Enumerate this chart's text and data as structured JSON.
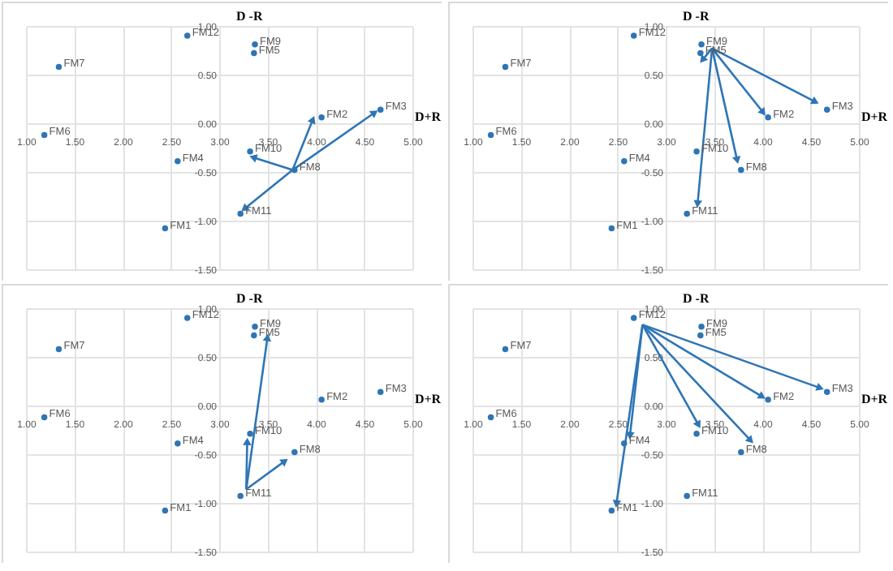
{
  "chart_data": [
    {
      "type": "scatter",
      "xlabel": "D+R",
      "ylabel": "D -R",
      "xlim": [
        1,
        5
      ],
      "ylim": [
        -1.5,
        1
      ],
      "grid": true,
      "xticks": [
        {
          "value": 1,
          "label": "1.00"
        },
        {
          "value": 1.5,
          "label": "1.50"
        },
        {
          "value": 2,
          "label": "2.00"
        },
        {
          "value": 2.5,
          "label": "2.50"
        },
        {
          "value": 3,
          "label": "3.00"
        },
        {
          "value": 3.5,
          "label": "3.50"
        },
        {
          "value": 4,
          "label": "4.00"
        },
        {
          "value": 4.5,
          "label": "4.50"
        },
        {
          "value": 5,
          "label": "5.00"
        }
      ],
      "yticks": [
        {
          "value": -1.5,
          "label": "-1.50"
        },
        {
          "value": -1,
          "label": "-1.00"
        },
        {
          "value": -0.5,
          "label": "-0.50"
        },
        {
          "value": 0,
          "label": "0.00"
        },
        {
          "value": 0.5,
          "label": "0.50"
        },
        {
          "value": 1,
          "label": "1.00"
        }
      ],
      "series": [
        {
          "color": "#2e75b6",
          "x": [
            2.44,
            4.06,
            4.67,
            2.57,
            3.36,
            1.19,
            1.34,
            3.78,
            3.37,
            3.32,
            3.22,
            2.67
          ],
          "values": [
            -1.08,
            0.06,
            0.14,
            -0.39,
            0.72,
            -0.12,
            0.58,
            -0.48,
            0.81,
            -0.29,
            -0.93,
            0.9
          ]
        },
        {
          "type": "line",
          "color": "#2e75b6",
          "x": [
            3.76,
            3.97
          ],
          "values": [
            -0.48,
            0.04
          ]
        },
        {
          "type": "line",
          "color": "#2e75b6",
          "x": [
            3.76,
            4.61
          ],
          "values": [
            -0.48,
            0.11
          ]
        },
        {
          "type": "line",
          "color": "#2e75b6",
          "x": [
            3.76,
            3.35
          ],
          "values": [
            -0.48,
            -0.35
          ]
        },
        {
          "type": "line",
          "color": "#2e75b6",
          "x": [
            3.76,
            3.26
          ],
          "values": [
            -0.48,
            -0.88
          ]
        }
      ],
      "annotations": [
        {
          "text": "FM1",
          "x": 2.44,
          "y": -1.08
        },
        {
          "text": "FM2",
          "x": 4.06,
          "y": 0.06
        },
        {
          "text": "FM3",
          "x": 4.67,
          "y": 0.14
        },
        {
          "text": "FM4",
          "x": 2.57,
          "y": -0.39
        },
        {
          "text": "FM5",
          "x": 3.36,
          "y": 0.72
        },
        {
          "text": "FM6",
          "x": 1.19,
          "y": -0.12
        },
        {
          "text": "FM7",
          "x": 1.34,
          "y": 0.58
        },
        {
          "text": "FM8",
          "x": 3.78,
          "y": -0.48
        },
        {
          "text": "FM9",
          "x": 3.37,
          "y": 0.81
        },
        {
          "text": "FM10",
          "x": 3.32,
          "y": -0.29
        },
        {
          "text": "FM11",
          "x": 3.22,
          "y": -0.93
        },
        {
          "text": "FM12",
          "x": 2.67,
          "y": 0.9
        }
      ]
    },
    {
      "type": "scatter",
      "xlabel": "D+R",
      "ylabel": "D -R",
      "xlim": [
        1,
        5
      ],
      "ylim": [
        -1.5,
        1
      ],
      "grid": true,
      "xticks": [
        {
          "value": 1,
          "label": "1.00"
        },
        {
          "value": 1.5,
          "label": "1.50"
        },
        {
          "value": 2,
          "label": "2.00"
        },
        {
          "value": 2.5,
          "label": "2.50"
        },
        {
          "value": 3,
          "label": "3.00"
        },
        {
          "value": 3.5,
          "label": "3.50"
        },
        {
          "value": 4,
          "label": "4.00"
        },
        {
          "value": 4.5,
          "label": "4.50"
        },
        {
          "value": 5,
          "label": "5.00"
        }
      ],
      "yticks": [
        {
          "value": -1.5,
          "label": "-1.50"
        },
        {
          "value": -1,
          "label": "-1.00"
        },
        {
          "value": -0.5,
          "label": "-0.50"
        },
        {
          "value": 0,
          "label": "0.00"
        },
        {
          "value": 0.5,
          "label": "0.50"
        },
        {
          "value": 1,
          "label": "1.00"
        }
      ],
      "series": [
        {
          "color": "#2e75b6",
          "x": [
            2.44,
            4.06,
            4.67,
            2.57,
            3.36,
            1.19,
            1.34,
            3.78,
            3.37,
            3.32,
            3.22,
            2.67
          ],
          "values": [
            -1.08,
            0.06,
            0.14,
            -0.39,
            0.72,
            -0.12,
            0.58,
            -0.48,
            0.81,
            -0.29,
            -0.93,
            0.9
          ]
        },
        {
          "type": "line",
          "color": "#2e75b6",
          "x": [
            3.48,
            3.38
          ],
          "values": [
            0.77,
            0.65
          ]
        },
        {
          "type": "line",
          "color": "#2e75b6",
          "x": [
            3.48,
            4.01
          ],
          "values": [
            0.77,
            0.11
          ]
        },
        {
          "type": "line",
          "color": "#2e75b6",
          "x": [
            3.48,
            4.55
          ],
          "values": [
            0.77,
            0.22
          ]
        },
        {
          "type": "line",
          "color": "#2e75b6",
          "x": [
            3.48,
            3.74
          ],
          "values": [
            0.77,
            -0.38
          ]
        },
        {
          "type": "line",
          "color": "#2e75b6",
          "x": [
            3.48,
            3.33
          ],
          "values": [
            0.77,
            -0.83
          ]
        }
      ],
      "annotations": [
        {
          "text": "FM1",
          "x": 2.44,
          "y": -1.08
        },
        {
          "text": "FM2",
          "x": 4.06,
          "y": 0.06
        },
        {
          "text": "FM3",
          "x": 4.67,
          "y": 0.14
        },
        {
          "text": "FM4",
          "x": 2.57,
          "y": -0.39
        },
        {
          "text": "FM5",
          "x": 3.36,
          "y": 0.72
        },
        {
          "text": "FM6",
          "x": 1.19,
          "y": -0.12
        },
        {
          "text": "FM7",
          "x": 1.34,
          "y": 0.58
        },
        {
          "text": "FM8",
          "x": 3.78,
          "y": -0.48
        },
        {
          "text": "FM9",
          "x": 3.37,
          "y": 0.81
        },
        {
          "text": "FM10",
          "x": 3.32,
          "y": -0.29
        },
        {
          "text": "FM11",
          "x": 3.22,
          "y": -0.93
        },
        {
          "text": "FM12",
          "x": 2.67,
          "y": 0.9
        }
      ]
    },
    {
      "type": "scatter",
      "xlabel": "D+R",
      "ylabel": "D -R",
      "xlim": [
        1,
        5
      ],
      "ylim": [
        -1.5,
        1
      ],
      "grid": true,
      "xticks": [
        {
          "value": 1,
          "label": "1.00"
        },
        {
          "value": 1.5,
          "label": "1.50"
        },
        {
          "value": 2,
          "label": "2.00"
        },
        {
          "value": 2.5,
          "label": "2.50"
        },
        {
          "value": 3,
          "label": "3.00"
        },
        {
          "value": 3.5,
          "label": "3.50"
        },
        {
          "value": 4,
          "label": "4.00"
        },
        {
          "value": 4.5,
          "label": "4.50"
        },
        {
          "value": 5,
          "label": "5.00"
        }
      ],
      "yticks": [
        {
          "value": -1.5,
          "label": "-1.50"
        },
        {
          "value": -1,
          "label": "-1.00"
        },
        {
          "value": -0.5,
          "label": "-0.50"
        },
        {
          "value": 0,
          "label": "0.00"
        },
        {
          "value": 0.5,
          "label": "0.50"
        },
        {
          "value": 1,
          "label": "1.00"
        }
      ],
      "series": [
        {
          "color": "#2e75b6",
          "x": [
            2.44,
            4.06,
            4.67,
            2.57,
            3.36,
            1.19,
            1.34,
            3.78,
            3.37,
            3.32,
            3.22,
            2.67
          ],
          "values": [
            -1.08,
            0.06,
            0.14,
            -0.39,
            0.72,
            -0.12,
            0.58,
            -0.48,
            0.81,
            -0.29,
            -0.93,
            0.9
          ]
        },
        {
          "type": "line",
          "color": "#2e75b6",
          "x": [
            3.28,
            3.5
          ],
          "values": [
            -0.86,
            0.7
          ]
        },
        {
          "type": "line",
          "color": "#2e75b6",
          "x": [
            3.28,
            3.29
          ],
          "values": [
            -0.86,
            -0.37
          ]
        },
        {
          "type": "line",
          "color": "#2e75b6",
          "x": [
            3.28,
            3.68
          ],
          "values": [
            -0.86,
            -0.57
          ]
        }
      ],
      "annotations": [
        {
          "text": "FM1",
          "x": 2.44,
          "y": -1.08
        },
        {
          "text": "FM2",
          "x": 4.06,
          "y": 0.06
        },
        {
          "text": "FM3",
          "x": 4.67,
          "y": 0.14
        },
        {
          "text": "FM4",
          "x": 2.57,
          "y": -0.39
        },
        {
          "text": "FM5",
          "x": 3.36,
          "y": 0.72
        },
        {
          "text": "FM6",
          "x": 1.19,
          "y": -0.12
        },
        {
          "text": "FM7",
          "x": 1.34,
          "y": 0.58
        },
        {
          "text": "FM8",
          "x": 3.78,
          "y": -0.48
        },
        {
          "text": "FM9",
          "x": 3.37,
          "y": 0.81
        },
        {
          "text": "FM10",
          "x": 3.32,
          "y": -0.29
        },
        {
          "text": "FM11",
          "x": 3.22,
          "y": -0.93
        },
        {
          "text": "FM12",
          "x": 2.67,
          "y": 0.9
        }
      ]
    },
    {
      "type": "scatter",
      "xlabel": "D+R",
      "ylabel": "D -R",
      "xlim": [
        1,
        5
      ],
      "ylim": [
        -1.5,
        1
      ],
      "grid": true,
      "xticks": [
        {
          "value": 1,
          "label": "1.00"
        },
        {
          "value": 1.5,
          "label": "1.50"
        },
        {
          "value": 2,
          "label": "2.00"
        },
        {
          "value": 2.5,
          "label": "2.50"
        },
        {
          "value": 3,
          "label": "3.00"
        },
        {
          "value": 3.5,
          "label": "3.50"
        },
        {
          "value": 4,
          "label": "4.00"
        },
        {
          "value": 4.5,
          "label": "4.50"
        },
        {
          "value": 5,
          "label": "5.00"
        }
      ],
      "yticks": [
        {
          "value": -1.5,
          "label": "-1.50"
        },
        {
          "value": -1,
          "label": "-1.00"
        },
        {
          "value": -0.5,
          "label": "-0.50"
        },
        {
          "value": 0,
          "label": "0.00"
        },
        {
          "value": 0.5,
          "label": "0.50"
        },
        {
          "value": 1,
          "label": "1.00"
        }
      ],
      "series": [
        {
          "color": "#2e75b6",
          "x": [
            2.44,
            4.06,
            4.67,
            2.57,
            3.36,
            1.19,
            1.34,
            3.78,
            3.37,
            3.32,
            3.22,
            2.67
          ],
          "values": [
            -1.08,
            0.06,
            0.14,
            -0.39,
            0.72,
            -0.12,
            0.58,
            -0.48,
            0.81,
            -0.29,
            -0.93,
            0.9
          ]
        },
        {
          "type": "line",
          "color": "#2e75b6",
          "x": [
            2.76,
            2.49
          ],
          "values": [
            0.83,
            -1.01
          ]
        },
        {
          "type": "line",
          "color": "#2e75b6",
          "x": [
            2.76,
            2.63
          ],
          "values": [
            0.83,
            -0.31
          ]
        },
        {
          "type": "line",
          "color": "#2e75b6",
          "x": [
            2.76,
            3.34
          ],
          "values": [
            0.83,
            -0.2
          ]
        },
        {
          "type": "line",
          "color": "#2e75b6",
          "x": [
            2.76,
            3.88
          ],
          "values": [
            0.83,
            -0.36
          ]
        },
        {
          "type": "line",
          "color": "#2e75b6",
          "x": [
            2.76,
            4.0
          ],
          "values": [
            0.83,
            0.09
          ]
        },
        {
          "type": "line",
          "color": "#2e75b6",
          "x": [
            2.76,
            4.6
          ],
          "values": [
            0.83,
            0.18
          ]
        }
      ],
      "annotations": [
        {
          "text": "FM1",
          "x": 2.44,
          "y": -1.08
        },
        {
          "text": "FM2",
          "x": 4.06,
          "y": 0.06
        },
        {
          "text": "FM3",
          "x": 4.67,
          "y": 0.14
        },
        {
          "text": "FM4",
          "x": 2.57,
          "y": -0.39
        },
        {
          "text": "FM5",
          "x": 3.36,
          "y": 0.72
        },
        {
          "text": "FM6",
          "x": 1.19,
          "y": -0.12
        },
        {
          "text": "FM7",
          "x": 1.34,
          "y": 0.58
        },
        {
          "text": "FM8",
          "x": 3.78,
          "y": -0.48
        },
        {
          "text": "FM9",
          "x": 3.37,
          "y": 0.81
        },
        {
          "text": "FM10",
          "x": 3.32,
          "y": -0.29
        },
        {
          "text": "FM11",
          "x": 3.22,
          "y": -0.93
        },
        {
          "text": "FM12",
          "x": 2.67,
          "y": 0.9
        }
      ]
    }
  ]
}
